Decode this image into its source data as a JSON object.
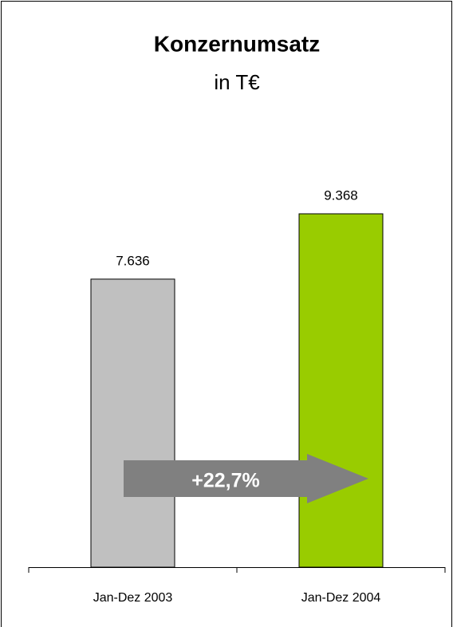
{
  "chart_data": {
    "type": "bar",
    "title": "Konzernumsatz",
    "subtitle": "in T€",
    "categories": [
      "Jan-Dez 2003",
      "Jan-Dez 2004"
    ],
    "values": [
      7636,
      9368
    ],
    "value_labels": [
      "7.636",
      "9.368"
    ],
    "colors": [
      "#c0c0c0",
      "#99cc00"
    ],
    "annotation": "+22,7%"
  }
}
